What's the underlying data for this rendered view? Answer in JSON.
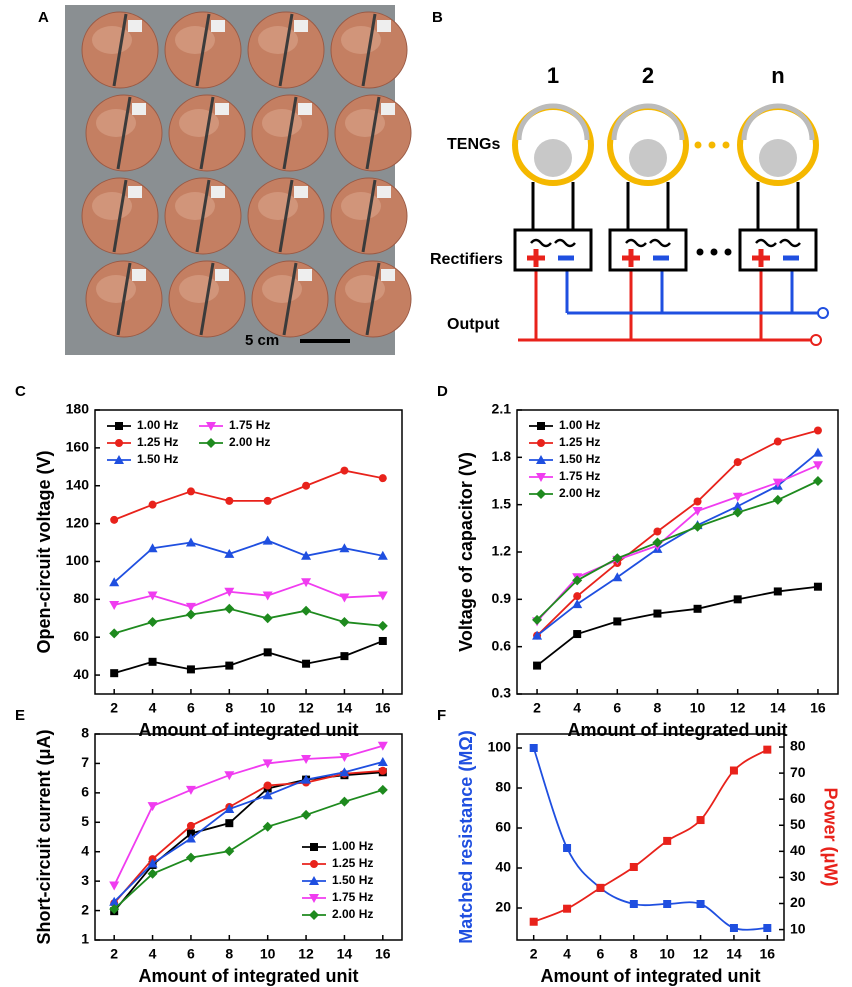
{
  "figure": {
    "panel_a": {
      "label": "A",
      "scale_bar": "5 cm"
    },
    "panel_b": {
      "label": "B",
      "columns": [
        "1",
        "2",
        "n"
      ],
      "row_labels": [
        "TENGs",
        "Rectifiers",
        "Output"
      ]
    }
  },
  "chart_data": [
    {
      "type": "line",
      "panel": "C",
      "x_label": "Amount of integrated unit",
      "y_label": "Open-circuit voltage (V)",
      "x": [
        2,
        4,
        6,
        8,
        10,
        12,
        14,
        16
      ],
      "xlim": [
        1,
        17
      ],
      "xticks": [
        2,
        4,
        6,
        8,
        10,
        12,
        14,
        16
      ],
      "ylim": [
        30,
        180
      ],
      "yticks": [
        40,
        60,
        80,
        100,
        120,
        140,
        160,
        180
      ],
      "legend": "upper left",
      "series": [
        {
          "name": "1.00 Hz",
          "color": "#000000",
          "marker": "square",
          "values": [
            41,
            47,
            43,
            45,
            52,
            46,
            50,
            58
          ]
        },
        {
          "name": "1.25 Hz",
          "color": "#e8221b",
          "marker": "circle",
          "values": [
            122,
            130,
            137,
            132,
            132,
            140,
            148,
            144
          ]
        },
        {
          "name": "1.50 Hz",
          "color": "#1f4fe0",
          "marker": "triangle-up",
          "values": [
            89,
            107,
            110,
            104,
            111,
            103,
            107,
            103
          ]
        },
        {
          "name": "1.75 Hz",
          "color": "#f03cf0",
          "marker": "triangle-down",
          "values": [
            77,
            82,
            76,
            84,
            82,
            89,
            81,
            82
          ]
        },
        {
          "name": "2.00 Hz",
          "color": "#1e8a1e",
          "marker": "diamond",
          "values": [
            62,
            68,
            72,
            75,
            70,
            74,
            68,
            66
          ]
        }
      ]
    },
    {
      "type": "line",
      "panel": "D",
      "x_label": "Amount of integrated unit",
      "y_label": "Voltage of capacitor (V)",
      "x": [
        2,
        4,
        6,
        8,
        10,
        12,
        14,
        16
      ],
      "xlim": [
        1,
        17
      ],
      "xticks": [
        2,
        4,
        6,
        8,
        10,
        12,
        14,
        16
      ],
      "ylim": [
        0.3,
        2.1
      ],
      "yticks": [
        0.3,
        0.6,
        0.9,
        1.2,
        1.5,
        1.8,
        2.1
      ],
      "legend": "upper left",
      "series": [
        {
          "name": "1.00 Hz",
          "color": "#000000",
          "marker": "square",
          "values": [
            0.48,
            0.68,
            0.76,
            0.81,
            0.84,
            0.9,
            0.95,
            0.98
          ]
        },
        {
          "name": "1.25 Hz",
          "color": "#e8221b",
          "marker": "circle",
          "values": [
            0.67,
            0.92,
            1.13,
            1.33,
            1.52,
            1.77,
            1.9,
            1.97
          ]
        },
        {
          "name": "1.50 Hz",
          "color": "#1f4fe0",
          "marker": "triangle-up",
          "values": [
            0.67,
            0.87,
            1.04,
            1.22,
            1.37,
            1.49,
            1.62,
            1.83
          ]
        },
        {
          "name": "1.75 Hz",
          "color": "#f03cf0",
          "marker": "triangle-down",
          "values": [
            0.76,
            1.04,
            1.15,
            1.24,
            1.46,
            1.55,
            1.64,
            1.75
          ]
        },
        {
          "name": "2.00 Hz",
          "color": "#1e8a1e",
          "marker": "diamond",
          "values": [
            0.77,
            1.02,
            1.16,
            1.26,
            1.36,
            1.45,
            1.53,
            1.65
          ]
        }
      ]
    },
    {
      "type": "line",
      "panel": "E",
      "x_label": "Amount of integrated unit",
      "y_label": "Short-circuit current (μA)",
      "x": [
        2,
        4,
        6,
        8,
        10,
        12,
        14,
        16
      ],
      "xlim": [
        1,
        17
      ],
      "xticks": [
        2,
        4,
        6,
        8,
        10,
        12,
        14,
        16
      ],
      "ylim": [
        1,
        8
      ],
      "yticks": [
        1,
        2,
        3,
        4,
        5,
        6,
        7,
        8
      ],
      "legend": "lower right",
      "series": [
        {
          "name": "1.00 Hz",
          "color": "#000000",
          "marker": "square",
          "values": [
            1.98,
            3.55,
            4.62,
            4.97,
            6.15,
            6.45,
            6.6,
            6.7
          ]
        },
        {
          "name": "1.25 Hz",
          "color": "#e8221b",
          "marker": "circle",
          "values": [
            2.25,
            3.75,
            4.88,
            5.52,
            6.25,
            6.35,
            6.65,
            6.75
          ]
        },
        {
          "name": "1.50 Hz",
          "color": "#1f4fe0",
          "marker": "triangle-up",
          "values": [
            2.3,
            3.6,
            4.45,
            5.45,
            5.92,
            6.45,
            6.7,
            7.05
          ]
        },
        {
          "name": "1.75 Hz",
          "color": "#f03cf0",
          "marker": "triangle-down",
          "values": [
            2.85,
            5.55,
            6.1,
            6.6,
            7.0,
            7.15,
            7.22,
            7.6
          ]
        },
        {
          "name": "2.00 Hz",
          "color": "#1e8a1e",
          "marker": "diamond",
          "values": [
            2.05,
            3.25,
            3.8,
            4.02,
            4.85,
            5.25,
            5.7,
            6.1
          ]
        }
      ]
    },
    {
      "type": "line",
      "panel": "F",
      "x_label": "Amount of integrated unit",
      "y_label": "Matched resistance (MΩ)",
      "y2_label": "Power (μW)",
      "x": [
        2,
        4,
        6,
        8,
        10,
        12,
        14,
        16
      ],
      "xlim": [
        1,
        17
      ],
      "xticks": [
        2,
        4,
        6,
        8,
        10,
        12,
        14,
        16
      ],
      "ylim": [
        4,
        107
      ],
      "yticks": [
        20,
        40,
        60,
        80,
        100
      ],
      "y2lim": [
        6,
        85
      ],
      "y2ticks": [
        10,
        20,
        30,
        40,
        50,
        60,
        70,
        80
      ],
      "smooth": true,
      "series": [
        {
          "color": "#1f4fe0",
          "marker": "square",
          "values": [
            100,
            50,
            30,
            22,
            22,
            22,
            10,
            10
          ]
        },
        {
          "color": "#e8221b",
          "marker": "square",
          "axis": "y2",
          "values": [
            13,
            18,
            26,
            34,
            44,
            52,
            71,
            79
          ]
        }
      ]
    }
  ]
}
